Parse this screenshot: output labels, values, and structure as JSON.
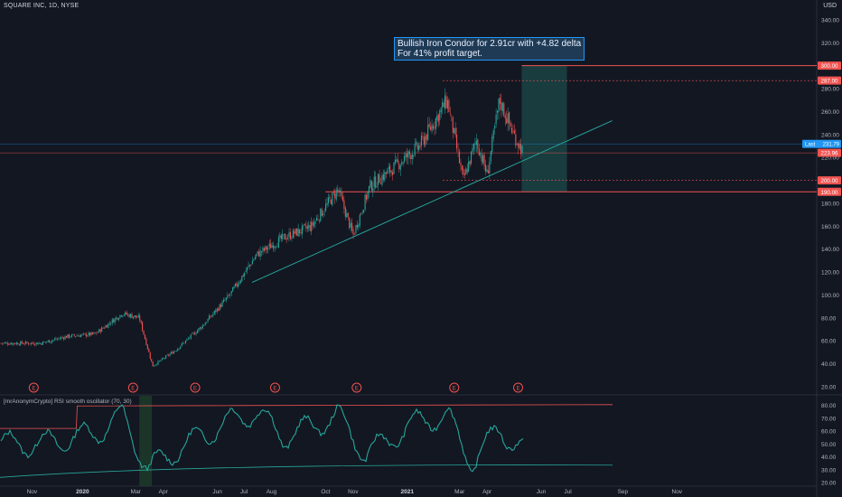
{
  "header": {
    "symbol_line": "SQUARE INC, 1D, NYSE",
    "currency": "USD"
  },
  "annotation": {
    "line1": "Bullish Iron Condor for 2.91cr with +4.82 delta",
    "line2": "For 41% profit target."
  },
  "oscillator": {
    "title": "[mrAnonymCrypto] RSI smooth oscillator (70, 30)",
    "ticks": [
      20,
      30,
      40,
      50,
      60,
      70,
      80
    ]
  },
  "colors": {
    "bg": "#131722",
    "up": "#26a69a",
    "down": "#ef5350",
    "trendline": "#26a69a",
    "level_line": "#ef5350",
    "box_fill": "#1c4a4a",
    "rsi_line": "#26a69a",
    "rsi_upper": "#ef5350",
    "rsi_lower": "#26a69a",
    "price_badge": "#2196f3",
    "earnings": "#ef5350"
  },
  "chart_data": {
    "type": "candlestick",
    "y_ticks": [
      20,
      40,
      60,
      80,
      100,
      120,
      140,
      160,
      180,
      200,
      220,
      240,
      260,
      280,
      300,
      320,
      340
    ],
    "ylim": [
      14,
      350
    ],
    "x_labels": [
      "Nov",
      "2020",
      "Mar",
      "Apr",
      "Jun",
      "Jul",
      "Aug",
      "Oct",
      "Nov",
      "2021",
      "Mar",
      "Apr",
      "Jun",
      "Jul",
      "Sep",
      "Nov"
    ],
    "price_levels": [
      {
        "label": "300.00",
        "value": 300,
        "kind": "box-top"
      },
      {
        "label": "287.00",
        "value": 287,
        "kind": "dashed"
      },
      {
        "label": "223.96",
        "value": 223.96,
        "kind": "current"
      },
      {
        "label": "200.00",
        "value": 200,
        "kind": "dashed"
      },
      {
        "label": "190.00",
        "value": 190,
        "kind": "box-bottom"
      }
    ],
    "last_price": {
      "label": "Last",
      "value": "231.79"
    },
    "earnings_markers": [
      "E",
      "E",
      "E",
      "E",
      "E",
      "E",
      "E"
    ],
    "price_path": [
      [
        "2019-11",
        58
      ],
      [
        "2019-12",
        64
      ],
      [
        "2020-01",
        66
      ],
      [
        "2020-02",
        84
      ],
      [
        "2020-03-05",
        80
      ],
      [
        "2020-03-20",
        38
      ],
      [
        "2020-04",
        52
      ],
      [
        "2020-05",
        73
      ],
      [
        "2020-06",
        100
      ],
      [
        "2020-07",
        135
      ],
      [
        "2020-08",
        150
      ],
      [
        "2020-09",
        160
      ],
      [
        "2020-10",
        192
      ],
      [
        "2020-11-01",
        152
      ],
      [
        "2020-11-20",
        195
      ],
      [
        "2020-12",
        210
      ],
      [
        "2021-01",
        230
      ],
      [
        "2021-02-15",
        270
      ],
      [
        "2021-03-05",
        200
      ],
      [
        "2021-03-20",
        235
      ],
      [
        "2021-04-01",
        205
      ],
      [
        "2021-04-15",
        270
      ],
      [
        "2021-05-01",
        240
      ],
      [
        "2021-05-12",
        224
      ]
    ],
    "rsi_path": [
      [
        "2019-11",
        50
      ],
      [
        "2020-01",
        58
      ],
      [
        "2020-02",
        72
      ],
      [
        "2020-03",
        30
      ],
      [
        "2020-04",
        45
      ],
      [
        "2020-06",
        68
      ],
      [
        "2020-07",
        75
      ],
      [
        "2020-08",
        55
      ],
      [
        "2020-10",
        72
      ],
      [
        "2020-11",
        42
      ],
      [
        "2021-01",
        68
      ],
      [
        "2021-02",
        72
      ],
      [
        "2021-03",
        35
      ],
      [
        "2021-04",
        62
      ],
      [
        "2021-05",
        42
      ]
    ],
    "rsi_upper_level": 70,
    "rsi_lower_level": 30,
    "trendline": [
      [
        "2020-07",
        111
      ],
      [
        "2021-06",
        252
      ]
    ],
    "target_zone": {
      "from": "2021-05",
      "to": "2021-06",
      "low": 190,
      "high": 300
    }
  }
}
